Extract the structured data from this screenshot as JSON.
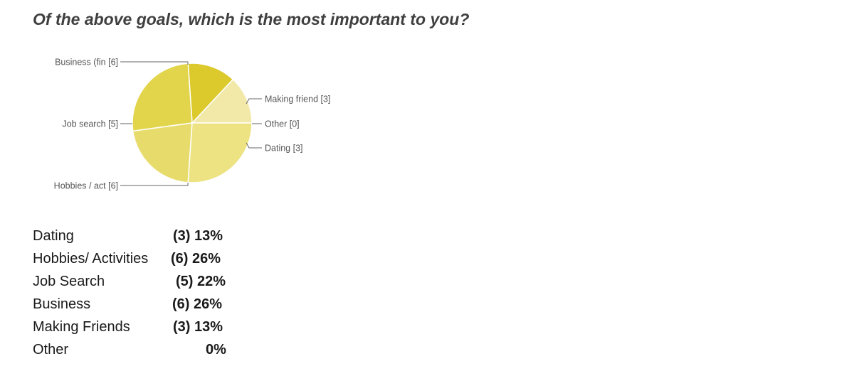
{
  "title": "Of the above goals, which is the most important to you?",
  "chart_data": {
    "type": "pie",
    "slices": [
      {
        "label": "Making friend [3]",
        "value": 3,
        "color": "#f2e9a8",
        "side": "right"
      },
      {
        "label": "Other [0]",
        "value": 0,
        "color": "#e8dd5e",
        "side": "right"
      },
      {
        "label": "Dating [3]",
        "value": 3,
        "color": "#dcc92c",
        "side": "right"
      },
      {
        "label": "Hobbies / act [6]",
        "value": 6,
        "color": "#e2d54c",
        "side": "left"
      },
      {
        "label": "Job search [5]",
        "value": 5,
        "color": "#e7dc6b",
        "side": "left"
      },
      {
        "label": "Business (fin [6]",
        "value": 6,
        "color": "#ede383",
        "side": "left"
      }
    ]
  },
  "summary": [
    {
      "label": "Dating",
      "value": "(3) 13%"
    },
    {
      "label": "Hobbies/ Activities",
      "value": "(6) 26%"
    },
    {
      "label": "Job Search",
      "value": "(5) 22%"
    },
    {
      "label": "Business",
      "value": "(6) 26%"
    },
    {
      "label": "Making Friends",
      "value": "(3) 13%"
    },
    {
      "label": "Other",
      "value": "0%"
    }
  ]
}
